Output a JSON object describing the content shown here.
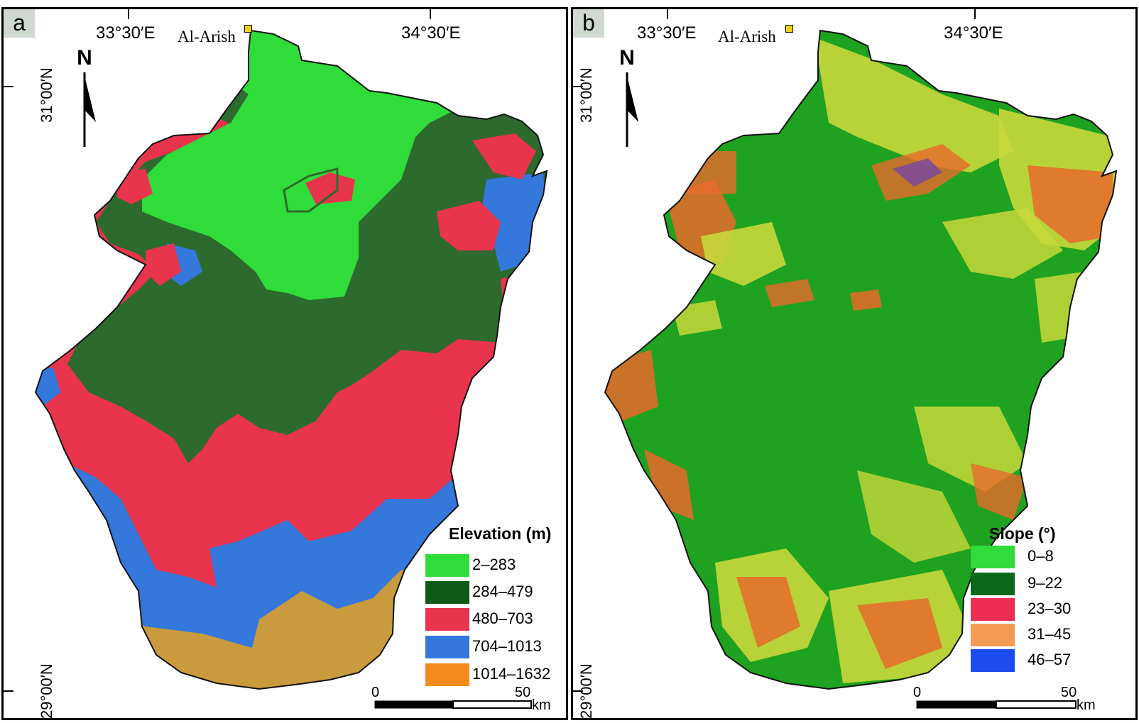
{
  "panel_a": {
    "letter": "a",
    "lon_labels": [
      "33°30′E",
      "34°30′E"
    ],
    "lat_labels": [
      "31°00′N",
      "29°00′N"
    ],
    "city": "Al-Arish",
    "north": "N",
    "legend": {
      "title": "Elevation (m)",
      "items": [
        {
          "label": "2–283",
          "color": "#2fdc3a"
        },
        {
          "label": "284–479",
          "color": "#2d6a2e"
        },
        {
          "label": "480–703",
          "color": "#e8344d"
        },
        {
          "label": "704–1013",
          "color": "#3478dc"
        },
        {
          "label": "1014–1632",
          "color": "#f28a1c"
        }
      ]
    },
    "scale": {
      "start": "0",
      "end": "50",
      "unit": "km"
    },
    "map_zone_colors": {
      "sand": "#c99b3c"
    }
  },
  "panel_b": {
    "letter": "b",
    "lon_labels": [
      "33°30′E",
      "34°30′E"
    ],
    "lat_labels": [
      "31°00′N",
      "29°00′N"
    ],
    "city": "Al-Arish",
    "north": "N",
    "legend": {
      "title": "Slope (°)",
      "items": [
        {
          "label": "0–8",
          "color": "#2fdc3a"
        },
        {
          "label": "9–22",
          "color": "#0a6a1a"
        },
        {
          "label": "23–30",
          "color": "#ee2d55"
        },
        {
          "label": "31–45",
          "color": "#f59a55"
        },
        {
          "label": "46–57",
          "color": "#1a4cf0"
        }
      ]
    },
    "scale": {
      "start": "0",
      "end": "50",
      "unit": "km"
    },
    "map_zone_colors": {
      "base": "#1fa21f",
      "yellow": "#c8d83a",
      "orange": "#e86a2a",
      "red": "#d23a2a"
    }
  }
}
